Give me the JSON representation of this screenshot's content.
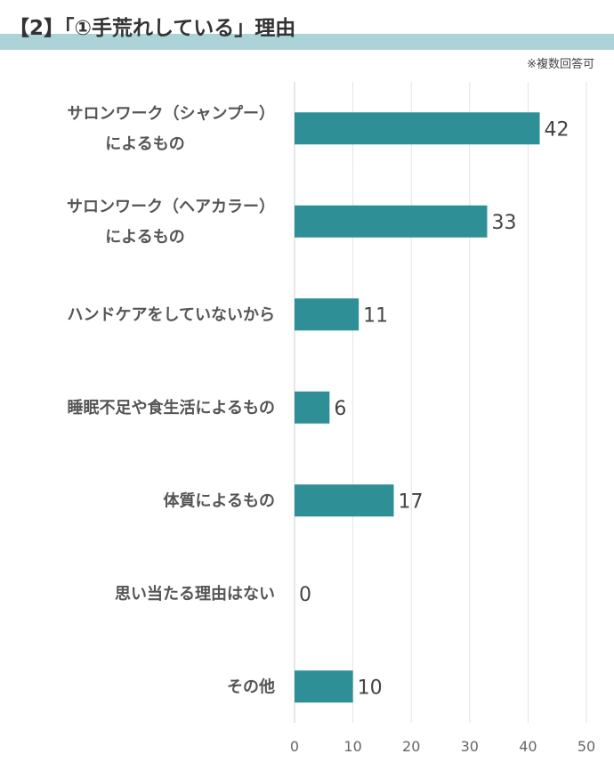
{
  "header": {
    "title": "【2】「①手荒れしている」理由",
    "note": "※複数回答可"
  },
  "colors": {
    "bar": "#2e9096",
    "title_band": "#acd3d8",
    "grid": "#e3e3e3"
  },
  "chart_data": {
    "type": "bar",
    "orientation": "horizontal",
    "categories": [
      [
        "サロンワーク（シャンプー）",
        "によるもの"
      ],
      [
        "サロンワーク（ヘアカラー）",
        "によるもの"
      ],
      [
        "ハンドケアをしていないから"
      ],
      [
        "睡眠不足や食生活によるもの"
      ],
      [
        "体質によるもの"
      ],
      [
        "思い当たる理由はない"
      ],
      [
        "その他"
      ]
    ],
    "values": [
      42,
      33,
      11,
      6,
      17,
      0,
      10
    ],
    "xlim": [
      0,
      50
    ],
    "xticks": [
      0,
      10,
      20,
      30,
      40,
      50
    ],
    "grid": true,
    "data_labels": true
  }
}
